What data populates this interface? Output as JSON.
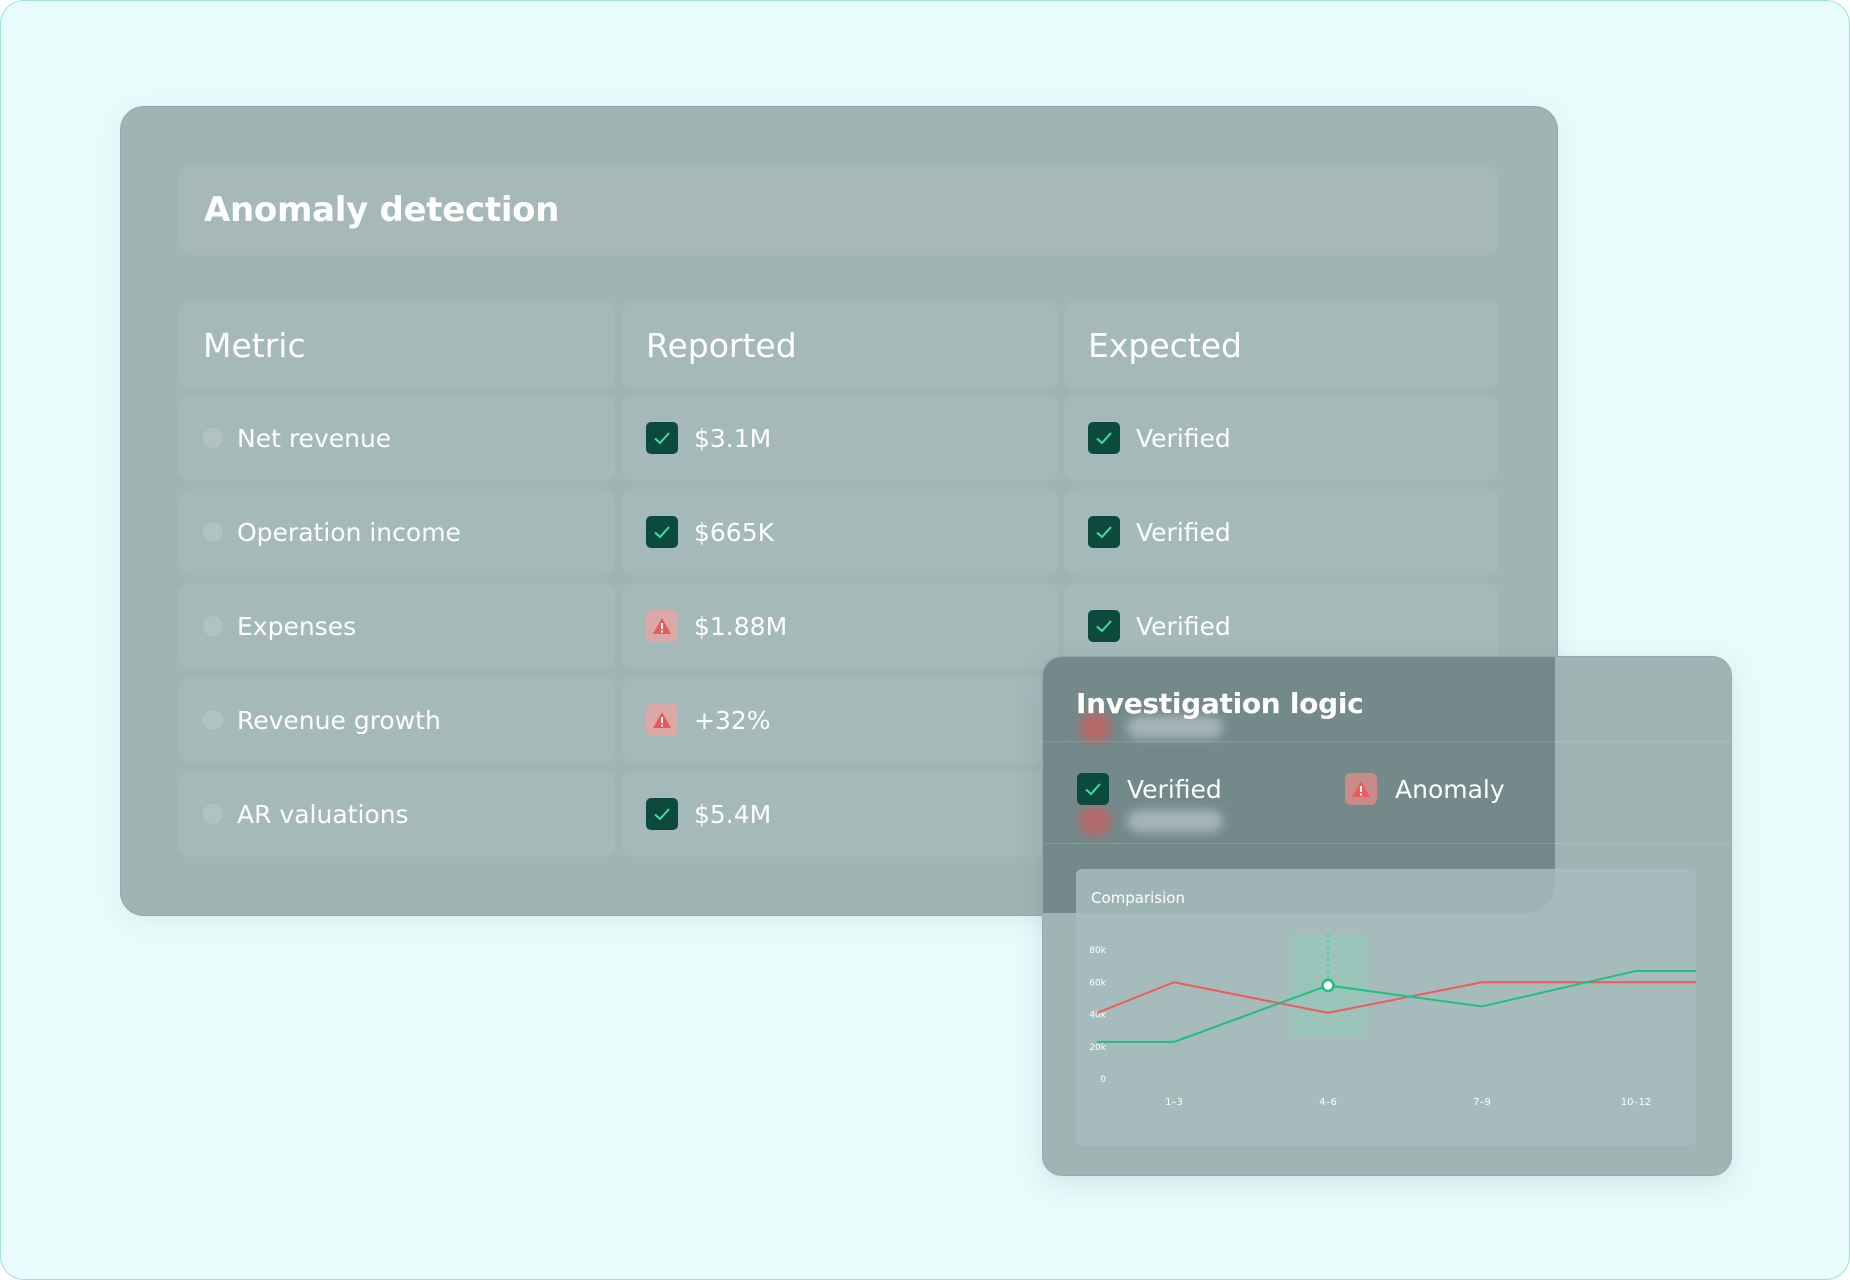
{
  "anomaly_panel": {
    "title": "Anomaly detection",
    "columns": [
      "Metric",
      "Reported",
      "Expected"
    ],
    "rows": [
      {
        "metric": "Net revenue",
        "reported": "$3.1M",
        "reported_status": "verified",
        "expected": "Verified",
        "expected_status": "verified"
      },
      {
        "metric": "Operation income",
        "reported": "$665K",
        "reported_status": "verified",
        "expected": "Verified",
        "expected_status": "verified"
      },
      {
        "metric": "Expenses",
        "reported": "$1.88M",
        "reported_status": "anomaly",
        "expected": "Verified",
        "expected_status": "verified"
      },
      {
        "metric": "Revenue growth",
        "reported": "+32%",
        "reported_status": "anomaly",
        "expected": "",
        "expected_status": "anomaly"
      },
      {
        "metric": "AR valuations",
        "reported": "$5.4M",
        "reported_status": "verified",
        "expected": "",
        "expected_status": "anomaly"
      }
    ]
  },
  "logic_panel": {
    "title": "Investigation logic",
    "legend": [
      {
        "label": "Verified",
        "icon": "check-icon"
      },
      {
        "label": "Anomaly",
        "icon": "warning-icon"
      }
    ]
  },
  "colors": {
    "verified": "#0d4a3e",
    "anomaly": "#e05c5c",
    "line_green": "#1fbf7f",
    "line_red": "#ef5b5b"
  },
  "chart_data": {
    "type": "line",
    "title": "Comparision",
    "categories": [
      "1-3",
      "4-6",
      "7-9",
      "10-12"
    ],
    "x_tick_labels": [
      "1–3",
      "4–6",
      "7–9",
      "10–12"
    ],
    "y_tick_labels": [
      "0",
      "20k",
      "40k",
      "60k",
      "80k"
    ],
    "ylim": [
      0,
      80000
    ],
    "x": [
      0.5,
      1,
      2,
      3,
      4,
      4.6
    ],
    "series": [
      {
        "color": "#ef5b5b",
        "values": [
          41000,
          60000,
          41000,
          60000,
          60000,
          60000
        ]
      },
      {
        "color": "#1fbf7f",
        "values": [
          23000,
          23000,
          58000,
          45000,
          67000,
          67000
        ]
      }
    ],
    "highlight_category": "4-6"
  }
}
